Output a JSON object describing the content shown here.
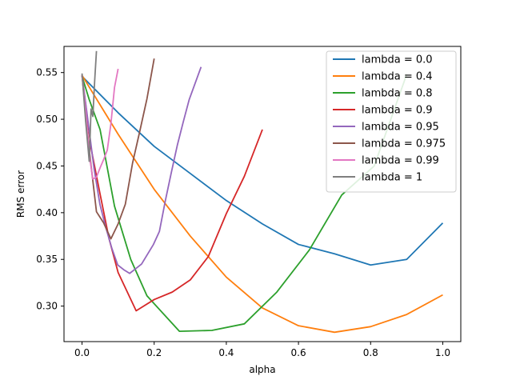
{
  "chart_data": {
    "type": "line",
    "title": "",
    "xlabel": "alpha",
    "ylabel": "RMS error",
    "xlim": [
      -0.05,
      1.05
    ],
    "ylim": [
      0.262,
      0.578
    ],
    "xticks": [
      0.0,
      0.2,
      0.4,
      0.6,
      0.8,
      1.0
    ],
    "xtick_labels": [
      "0.0",
      "0.2",
      "0.4",
      "0.6",
      "0.8",
      "1.0"
    ],
    "yticks": [
      0.3,
      0.35,
      0.4,
      0.45,
      0.5,
      0.55
    ],
    "ytick_labels": [
      "0.30",
      "0.35",
      "0.40",
      "0.45",
      "0.50",
      "0.55"
    ],
    "grid": false,
    "legend_position": "top-right",
    "series": [
      {
        "name": "lambda = 0.0",
        "color": "#1f77b4",
        "x": [
          0.0,
          0.1,
          0.2,
          0.3,
          0.4,
          0.5,
          0.6,
          0.7,
          0.8,
          0.9,
          1.0
        ],
        "y": [
          0.546,
          0.507,
          0.471,
          0.442,
          0.413,
          0.388,
          0.366,
          0.356,
          0.344,
          0.35,
          0.389
        ]
      },
      {
        "name": "lambda = 0.4",
        "color": "#ff7f0e",
        "x": [
          0.0,
          0.1,
          0.2,
          0.3,
          0.4,
          0.5,
          0.6,
          0.7,
          0.8,
          0.9,
          1.0
        ],
        "y": [
          0.547,
          0.484,
          0.425,
          0.375,
          0.331,
          0.298,
          0.279,
          0.272,
          0.278,
          0.291,
          0.312
        ]
      },
      {
        "name": "lambda = 0.8",
        "color": "#2ca02c",
        "x": [
          0.0,
          0.02,
          0.05,
          0.09,
          0.135,
          0.18,
          0.27,
          0.36,
          0.45,
          0.54,
          0.63,
          0.72,
          0.81,
          0.9
        ],
        "y": [
          0.546,
          0.521,
          0.489,
          0.407,
          0.35,
          0.311,
          0.273,
          0.274,
          0.281,
          0.315,
          0.36,
          0.419,
          0.45,
          0.548
        ]
      },
      {
        "name": "lambda = 0.9",
        "color": "#d62728",
        "x": [
          0.0,
          0.025,
          0.05,
          0.075,
          0.1,
          0.15,
          0.2,
          0.25,
          0.3,
          0.35,
          0.4,
          0.45,
          0.5
        ],
        "y": [
          0.547,
          0.469,
          0.42,
          0.372,
          0.336,
          0.295,
          0.307,
          0.315,
          0.328,
          0.353,
          0.399,
          0.439,
          0.489
        ]
      },
      {
        "name": "lambda = 0.95",
        "color": "#9467bd",
        "x": [
          0.0,
          0.0165,
          0.033,
          0.0495,
          0.066,
          0.0825,
          0.099,
          0.1155,
          0.132,
          0.1485,
          0.165,
          0.198,
          0.2145,
          0.231,
          0.2475,
          0.264,
          0.2805,
          0.297,
          0.33
        ],
        "y": [
          0.547,
          0.498,
          0.448,
          0.409,
          0.384,
          0.362,
          0.344,
          0.339,
          0.335,
          0.34,
          0.345,
          0.366,
          0.38,
          0.413,
          0.443,
          0.472,
          0.497,
          0.521,
          0.556
        ]
      },
      {
        "name": "lambda = 0.975",
        "color": "#8c564b",
        "x": [
          0.0,
          0.02,
          0.04,
          0.06,
          0.08,
          0.1,
          0.12,
          0.14,
          0.16,
          0.18,
          0.2
        ],
        "y": [
          0.547,
          0.467,
          0.401,
          0.389,
          0.372,
          0.388,
          0.409,
          0.453,
          0.487,
          0.522,
          0.565
        ]
      },
      {
        "name": "lambda = 0.99",
        "color": "#e377c2",
        "x": [
          0.0,
          0.01,
          0.02,
          0.03,
          0.04,
          0.05,
          0.06,
          0.07,
          0.08,
          0.09,
          0.1
        ],
        "y": [
          0.547,
          0.51,
          0.462,
          0.436,
          0.438,
          0.448,
          0.457,
          0.467,
          0.495,
          0.534,
          0.554
        ]
      },
      {
        "name": "lambda = 1",
        "color": "#7f7f7f",
        "x": [
          0.0,
          0.01,
          0.02,
          0.025,
          0.03,
          0.035,
          0.04
        ],
        "y": [
          0.549,
          0.498,
          0.455,
          0.511,
          0.503,
          0.541,
          0.573
        ]
      }
    ]
  }
}
